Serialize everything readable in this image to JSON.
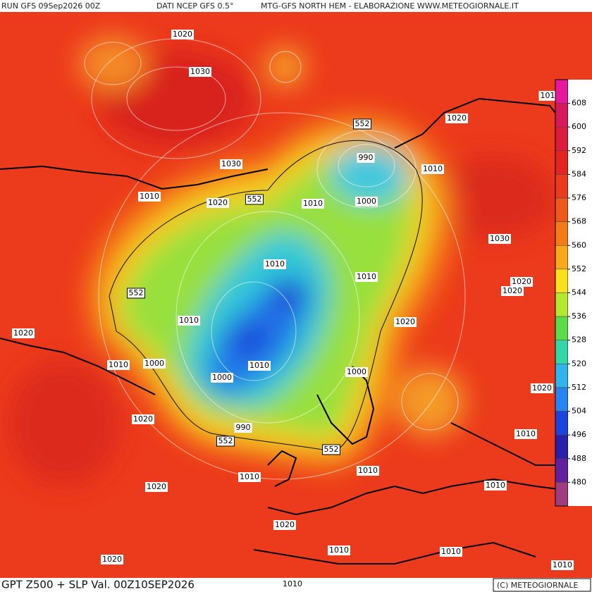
{
  "header": {
    "run": "RUN GFS 09Sep2026 00Z",
    "source": "DATI NCEP GFS 0.5°",
    "credit": "MTG-GFS NORTH HEM - ELABORAZIONE WWW.METEOGIORNALE.IT"
  },
  "footer": {
    "title": "GPT Z500 + SLP Val. 00Z10SEP2026",
    "copyright": "(C) METEOGIORNALE"
  },
  "colorbar": {
    "labels": [
      608,
      600,
      592,
      584,
      576,
      568,
      560,
      552,
      544,
      536,
      528,
      520,
      512,
      504,
      496,
      488,
      480
    ],
    "colors": [
      "#e8189e",
      "#d8185c",
      "#dc1c3c",
      "#e42420",
      "#ea3c1c",
      "#ef5a1a",
      "#f47c18",
      "#f8a818",
      "#f8e01c",
      "#b4e830",
      "#5cdc48",
      "#30d8a8",
      "#30b4ec",
      "#2884f0",
      "#1c44dc",
      "#2820a8",
      "#6020a0",
      "#a03c80"
    ]
  },
  "contour_labels": [
    "1020",
    "1030",
    "101",
    "1020",
    "552",
    "990",
    "1010",
    "1030",
    "1010",
    "1020",
    "552",
    "1010",
    "1000",
    "1030",
    "1010",
    "552",
    "1010",
    "1020",
    "1020",
    "1020",
    "1010",
    "1020",
    "1010",
    "1000",
    "1010",
    "1000",
    "1000",
    "1020",
    "1020",
    "990",
    "552",
    "552",
    "1010",
    "1010",
    "1010",
    "1020",
    "1010",
    "1020",
    "1010",
    "1010",
    "1020",
    "1010",
    "1010"
  ]
}
